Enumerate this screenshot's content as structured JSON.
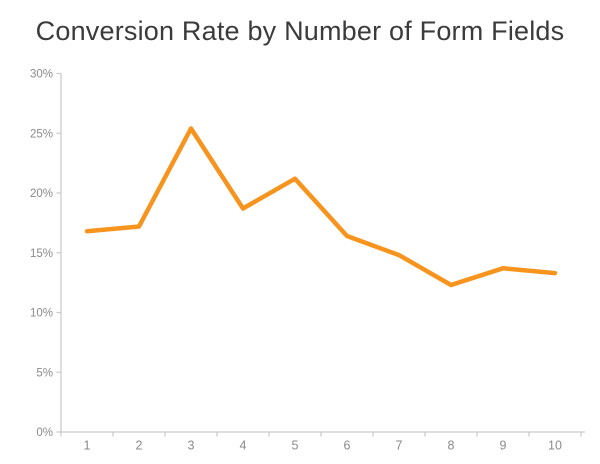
{
  "page": {
    "background_color": "#ffffff"
  },
  "chart_data": {
    "type": "line",
    "title": "Conversion Rate by Number of Form Fields",
    "categories": [
      "1",
      "2",
      "3",
      "4",
      "5",
      "6",
      "7",
      "8",
      "9",
      "10"
    ],
    "values": [
      16.8,
      17.2,
      25.4,
      18.7,
      21.2,
      16.4,
      14.8,
      12.3,
      13.7,
      13.3
    ],
    "xlabel": "",
    "ylabel": "",
    "ylim": [
      0,
      30
    ],
    "ytick_step": 5,
    "ytick_labels": [
      "0%",
      "5%",
      "10%",
      "15%",
      "20%",
      "25%",
      "30%"
    ],
    "grid": false,
    "legend": "none",
    "marker": "none",
    "line_color": "#F7941E",
    "line_width": 4.5,
    "axis_color": "#C9C9C9",
    "label_color": "#8A8A8A",
    "title_color": "#3B3B3B"
  }
}
